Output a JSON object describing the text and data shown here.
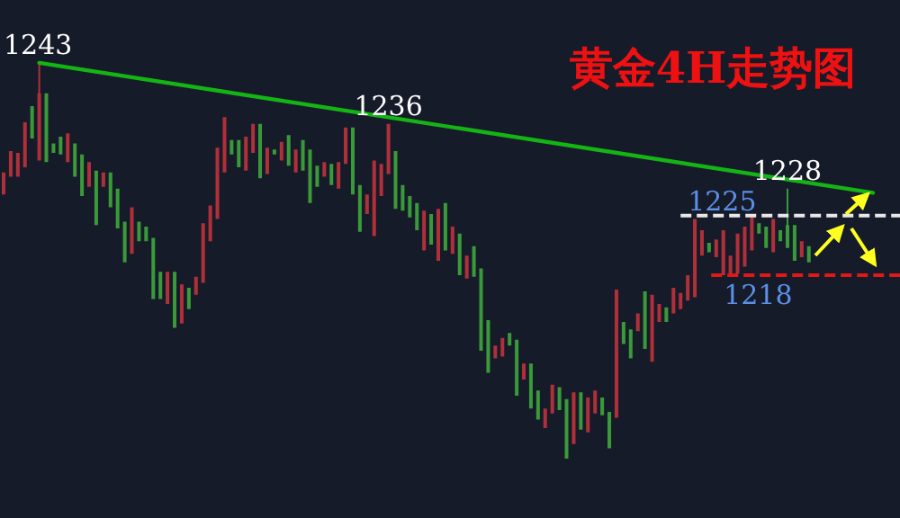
{
  "chart_data": {
    "type": "candlestick",
    "title": "黄金4H走势图",
    "categories": [
      null,
      null,
      null,
      null,
      null,
      null,
      null,
      null,
      null,
      null,
      null,
      null,
      null,
      null,
      null,
      null,
      null,
      null,
      null,
      null,
      null,
      null,
      null,
      null,
      null,
      null,
      null,
      null,
      null,
      null,
      null,
      null,
      null,
      null,
      null,
      null,
      null,
      null,
      null,
      null,
      null,
      null,
      null,
      null,
      null,
      null,
      null,
      null,
      null,
      null,
      null,
      null,
      null,
      null,
      null,
      null,
      null,
      null,
      null,
      null,
      null,
      null,
      null,
      null,
      null,
      null,
      null,
      null,
      null,
      null,
      null,
      null,
      null,
      null,
      null,
      null,
      null,
      null,
      null,
      null,
      null,
      null,
      null,
      null,
      null,
      null,
      null,
      null,
      null,
      null,
      null,
      null,
      null,
      null,
      null,
      null,
      null,
      null,
      null,
      null,
      null,
      null,
      null,
      null,
      null,
      null,
      null,
      null,
      null,
      null,
      null,
      null,
      null,
      null,
      null,
      null,
      null,
      null,
      null,
      null,
      null,
      null,
      null
    ],
    "ylim": [
      1189.4,
      1250.4
    ],
    "series": [
      {
        "colors": [
          "#b0303a",
          "#b0303a",
          "#b0303a",
          "#b0303a",
          "#3a9a3a",
          "#b0303a",
          "#3a9a3a",
          "#3a9a3a",
          "#3a9a3a",
          "#b0303a",
          "#3a9a3a",
          "#3a9a3a",
          "#b0303a",
          "#3a9a3a",
          "#b0303a",
          "#3a9a3a",
          "#3a9a3a",
          "#3a9a3a",
          "#b0303a",
          "#3a9a3a",
          "#3a9a3a",
          "#3a9a3a",
          "#3a9a3a",
          "#b0303a",
          "#3a9a3a",
          "#b0303a",
          "#3a9a3a",
          "#b0303a",
          "#b0303a",
          "#b0303a",
          "#b0303a",
          "#b0303a",
          "#3a9a3a",
          "#3a9a3a",
          "#b0303a",
          "#b0303a",
          "#3a9a3a",
          "#b0303a",
          "#3a9a3a",
          "#b0303a",
          "#3a9a3a",
          "#b0303a",
          "#3a9a3a",
          "#3a9a3a",
          "#3a9a3a",
          "#b0303a",
          "#3a9a3a",
          "#b0303a",
          "#b0303a",
          "#3a9a3a",
          "#3a9a3a",
          "#b0303a",
          "#b0303a",
          "#b0303a",
          "#b0303a",
          "#3a9a3a",
          "#3a9a3a",
          "#3a9a3a",
          "#3a9a3a",
          "#b0303a",
          "#3a9a3a",
          "#b0303a",
          "#3a9a3a",
          "#b0303a",
          "#3a9a3a",
          "#b0303a",
          "#3a9a3a",
          "#3a9a3a",
          "#3a9a3a",
          "#b0303a",
          "#b0303a",
          "#3a9a3a",
          "#3a9a3a",
          "#b0303a",
          "#3a9a3a",
          "#3a9a3a",
          "#b0303a",
          "#b0303a",
          "#3a9a3a",
          "#3a9a3a",
          "#b0303a",
          "#3a9a3a",
          "#b0303a",
          "#b0303a",
          "#3a9a3a",
          "#3a9a3a",
          "#b0303a",
          "#3a9a3a",
          "#3a9a3a",
          "#b0303a",
          "#3a9a3a",
          "#b0303a",
          "#b0303a",
          "#3a9a3a",
          "#b0303a",
          "#b0303a",
          "#b0303a",
          "#b0303a",
          "#b0303a",
          "#3a9a3a",
          "#b0303a",
          "#b0303a",
          "#b0303a",
          "#b0303a",
          "#b0303a",
          "#b0303a",
          "#3a9a3a",
          "#3a9a3a",
          "#b0303a",
          "#3a9a3a",
          "#3a9a3a",
          "#3a9a3a",
          "#b0303a",
          "#3a9a3a",
          null,
          null,
          null,
          null,
          null,
          null,
          null,
          null,
          null
        ],
        "ohlc": [
          [
            1227.5,
            1230.1,
            1227.5,
            1230.1
          ],
          [
            1229.6,
            1232.6,
            1229.6,
            1232.6
          ],
          [
            1229.6,
            1232.4,
            1229.6,
            1232.4
          ],
          [
            1230.7,
            1236.0,
            1230.7,
            1236.0
          ],
          [
            1237.9,
            1237.9,
            1234.1,
            1234.1
          ],
          [
            1231.5,
            1243.0,
            1231.5,
            1239.4
          ],
          [
            1239.4,
            1239.4,
            1231.3,
            1231.3
          ],
          [
            1233.5,
            1233.5,
            1232.4,
            1232.4
          ],
          [
            1234.3,
            1234.3,
            1232.2,
            1232.2
          ],
          [
            1231.3,
            1234.7,
            1231.3,
            1234.7
          ],
          [
            1233.5,
            1233.5,
            1229.6,
            1229.6
          ],
          [
            1232.2,
            1232.2,
            1227.3,
            1227.3
          ],
          [
            1228.4,
            1231.3,
            1228.4,
            1231.3
          ],
          [
            1230.3,
            1230.3,
            1223.9,
            1223.9
          ],
          [
            1228.4,
            1230.1,
            1228.4,
            1230.1
          ],
          [
            1230.1,
            1230.1,
            1226.0,
            1226.0
          ],
          [
            1228.2,
            1228.2,
            1223.5,
            1223.5
          ],
          [
            1224.3,
            1224.3,
            1219.5,
            1219.5
          ],
          [
            1220.5,
            1226.0,
            1220.5,
            1226.0
          ],
          [
            1224.3,
            1224.3,
            1222.0,
            1222.0
          ],
          [
            1223.7,
            1223.7,
            1222.0,
            1222.0
          ],
          [
            1222.4,
            1222.4,
            1215.2,
            1215.2
          ],
          [
            1218.4,
            1218.4,
            1215.2,
            1215.2
          ],
          [
            1214.6,
            1218.4,
            1214.6,
            1218.4
          ],
          [
            1218.4,
            1218.4,
            1211.8,
            1211.8
          ],
          [
            1212.3,
            1216.9,
            1212.3,
            1216.9
          ],
          [
            1216.5,
            1216.5,
            1214.0,
            1214.0
          ],
          [
            1215.7,
            1217.8,
            1215.7,
            1217.8
          ],
          [
            1217.1,
            1224.1,
            1217.1,
            1224.1
          ],
          [
            1222.0,
            1226.2,
            1222.0,
            1226.2
          ],
          [
            1224.6,
            1233.0,
            1224.6,
            1233.0
          ],
          [
            1230.1,
            1236.6,
            1230.1,
            1236.6
          ],
          [
            1233.9,
            1233.9,
            1232.2,
            1232.2
          ],
          [
            1233.9,
            1233.9,
            1230.7,
            1230.7
          ],
          [
            1230.3,
            1234.3,
            1230.3,
            1234.3
          ],
          [
            1232.4,
            1235.8,
            1232.4,
            1235.8
          ],
          [
            1235.8,
            1235.8,
            1229.4,
            1229.4
          ],
          [
            1229.9,
            1233.0,
            1229.9,
            1233.0
          ],
          [
            1232.8,
            1232.8,
            1232.2,
            1232.2
          ],
          [
            1231.5,
            1233.7,
            1231.5,
            1233.7
          ],
          [
            1234.5,
            1234.5,
            1230.9,
            1230.9
          ],
          [
            1230.1,
            1232.8,
            1230.1,
            1232.8
          ],
          [
            1233.9,
            1233.9,
            1230.3,
            1230.3
          ],
          [
            1232.8,
            1232.8,
            1226.5,
            1226.5
          ],
          [
            1230.9,
            1230.9,
            1228.4,
            1228.4
          ],
          [
            1229.6,
            1231.3,
            1229.6,
            1231.3
          ],
          [
            1231.1,
            1231.1,
            1228.6,
            1228.6
          ],
          [
            1228.2,
            1231.3,
            1228.2,
            1231.3
          ],
          [
            1231.1,
            1235.4,
            1231.1,
            1235.4
          ],
          [
            1235.4,
            1235.4,
            1227.5,
            1227.5
          ],
          [
            1228.6,
            1228.6,
            1223.1,
            1223.1
          ],
          [
            1225.2,
            1227.5,
            1225.2,
            1227.5
          ],
          [
            1222.6,
            1231.5,
            1222.6,
            1231.5
          ],
          [
            1227.3,
            1231.1,
            1227.3,
            1231.1
          ],
          [
            1229.9,
            1235.8,
            1229.9,
            1235.8
          ],
          [
            1232.6,
            1232.6,
            1225.8,
            1225.8
          ],
          [
            1228.6,
            1228.6,
            1225.6,
            1225.6
          ],
          [
            1227.3,
            1227.3,
            1224.8,
            1224.8
          ],
          [
            1226.5,
            1226.5,
            1223.3,
            1223.3
          ],
          [
            1220.9,
            1225.6,
            1220.9,
            1225.6
          ],
          [
            1225.2,
            1225.2,
            1221.6,
            1221.6
          ],
          [
            1219.7,
            1225.8,
            1219.7,
            1225.8
          ],
          [
            1226.5,
            1226.5,
            1220.9,
            1220.9
          ],
          [
            1220.5,
            1223.7,
            1220.5,
            1223.7
          ],
          [
            1222.9,
            1222.9,
            1218.0,
            1218.0
          ],
          [
            1217.6,
            1220.3,
            1217.6,
            1220.3
          ],
          [
            1221.4,
            1221.4,
            1217.8,
            1217.8
          ],
          [
            1218.8,
            1218.8,
            1209.1,
            1209.1
          ],
          [
            1212.7,
            1212.7,
            1206.5,
            1206.5
          ],
          [
            1208.2,
            1209.7,
            1208.2,
            1209.7
          ],
          [
            1208.4,
            1210.6,
            1208.4,
            1210.6
          ],
          [
            1211.2,
            1211.2,
            1209.7,
            1209.7
          ],
          [
            1210.4,
            1210.4,
            1203.8,
            1203.8
          ],
          [
            1205.7,
            1207.6,
            1205.7,
            1207.6
          ],
          [
            1207.6,
            1207.6,
            1202.3,
            1202.3
          ],
          [
            1204.4,
            1204.4,
            1201.0,
            1201.0
          ],
          [
            1200.0,
            1202.3,
            1200.0,
            1202.3
          ],
          [
            1201.7,
            1205.1,
            1201.7,
            1205.1
          ],
          [
            1204.8,
            1204.8,
            1202.1,
            1202.1
          ],
          [
            1203.4,
            1203.4,
            1196.4,
            1196.4
          ],
          [
            1198.1,
            1204.2,
            1198.1,
            1204.2
          ],
          [
            1204.2,
            1204.2,
            1199.8,
            1199.8
          ],
          [
            1199.5,
            1203.6,
            1199.5,
            1203.6
          ],
          [
            1201.7,
            1204.4,
            1201.7,
            1204.4
          ],
          [
            1203.6,
            1203.6,
            1201.5,
            1201.5
          ],
          [
            1201.9,
            1201.9,
            1197.6,
            1197.6
          ],
          [
            1201.2,
            1216.3,
            1201.2,
            1216.3
          ],
          [
            1212.5,
            1212.5,
            1209.9,
            1209.9
          ],
          [
            1211.6,
            1211.6,
            1208.2,
            1208.2
          ],
          [
            1211.4,
            1213.5,
            1211.4,
            1213.5
          ],
          [
            1216.1,
            1216.1,
            1209.3,
            1209.3
          ],
          [
            1207.8,
            1215.7,
            1207.8,
            1215.7
          ],
          [
            1212.5,
            1214.6,
            1212.5,
            1214.6
          ],
          [
            1214.2,
            1214.2,
            1212.5,
            1212.5
          ],
          [
            1213.5,
            1216.5,
            1213.5,
            1216.5
          ],
          [
            1214.0,
            1215.9,
            1214.0,
            1215.9
          ],
          [
            1215.0,
            1218.0,
            1215.0,
            1218.0
          ],
          [
            1215.4,
            1224.6,
            1215.4,
            1224.6
          ],
          [
            1220.3,
            1223.3,
            1220.3,
            1223.3
          ],
          [
            1221.8,
            1221.8,
            1220.7,
            1220.7
          ],
          [
            1220.1,
            1222.2,
            1220.1,
            1222.2
          ],
          [
            1218.0,
            1223.3,
            1218.0,
            1223.3
          ],
          [
            1218.2,
            1220.3,
            1218.2,
            1220.3
          ],
          [
            1218.2,
            1222.9,
            1218.2,
            1222.9
          ],
          [
            1219.0,
            1223.7,
            1219.0,
            1223.7
          ],
          [
            1220.9,
            1225.0,
            1220.9,
            1225.0
          ],
          [
            1224.1,
            1224.1,
            1222.9,
            1222.9
          ],
          [
            1223.7,
            1223.7,
            1221.2,
            1221.2
          ],
          [
            1220.7,
            1224.6,
            1220.7,
            1224.6
          ],
          [
            1223.3,
            1223.3,
            1222.0,
            1222.0
          ],
          [
            1223.9,
            1228.2,
            1221.2,
            1221.2
          ],
          [
            1223.9,
            1223.9,
            1219.7,
            1219.7
          ],
          [
            1220.1,
            1222.0,
            1220.1,
            1222.0
          ],
          [
            1221.4,
            1221.4,
            1219.5,
            1219.5
          ],
          null,
          null,
          null,
          null,
          null,
          null,
          null,
          null,
          null
        ]
      },
      {
        "type": "line",
        "color": "#14b414",
        "values": [
          null,
          null,
          null,
          null,
          null,
          1243.0,
          null,
          null,
          null,
          null,
          null,
          null,
          null,
          null,
          null,
          null,
          null,
          null,
          null,
          null,
          null,
          null,
          null,
          null,
          null,
          null,
          null,
          null,
          null,
          null,
          null,
          null,
          null,
          null,
          null,
          null,
          null,
          null,
          null,
          null,
          null,
          null,
          null,
          null,
          null,
          null,
          null,
          null,
          null,
          null,
          null,
          null,
          null,
          null,
          null,
          null,
          null,
          null,
          null,
          null,
          null,
          null,
          null,
          null,
          null,
          null,
          null,
          null,
          null,
          null,
          null,
          null,
          null,
          null,
          null,
          null,
          null,
          null,
          null,
          null,
          null,
          null,
          null,
          null,
          null,
          null,
          null,
          null,
          null,
          null,
          null,
          null,
          null,
          null,
          null,
          null,
          null,
          null,
          null,
          null,
          null,
          null,
          null,
          null,
          null,
          null,
          null,
          null,
          null,
          null,
          null,
          null,
          null,
          null,
          null,
          null,
          null,
          null,
          null,
          null,
          null,
          null,
          1227.7
        ]
      }
    ],
    "ref_lines": [
      {
        "axis": "y",
        "value": 1225,
        "label": "1225",
        "color": "#e8e8e8",
        "line_style": "dashed"
      },
      {
        "axis": "y",
        "value": 1218,
        "label": "1218",
        "color": "#e01818",
        "line_style": "dashed"
      }
    ],
    "annotations": [
      {
        "text": "1243",
        "y": 1243.0
      },
      {
        "text": "1236",
        "y": 1235.8
      },
      {
        "text": "1228",
        "y": 1228.2
      }
    ]
  }
}
